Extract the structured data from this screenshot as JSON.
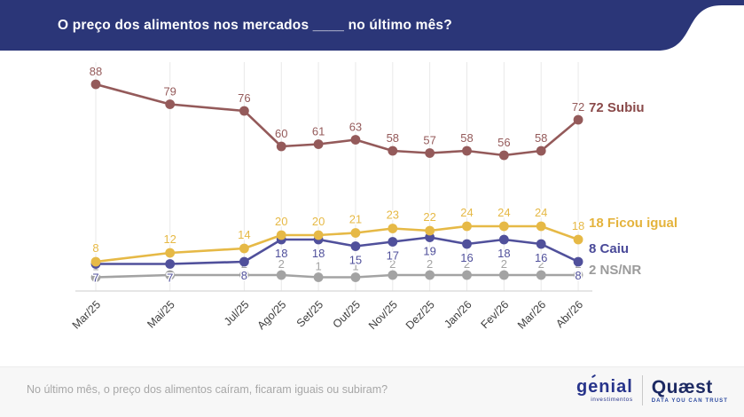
{
  "header": {
    "title": "O preço dos alimentos nos mercados ____ no último mês?",
    "bg_color": "#2b3678",
    "text_color": "#ffffff"
  },
  "chart_data": {
    "type": "line",
    "title": "O preço dos alimentos nos mercados ____ no último mês?",
    "x": [
      "Mar/25",
      "Mai/25",
      "Jul/25",
      "Ago/25",
      "Set/25",
      "Out/25",
      "Nov/25",
      "Dez/25",
      "Jan/26",
      "Fev/26",
      "Mar/26",
      "Abr/26"
    ],
    "month_offsets": [
      0,
      2,
      4,
      5,
      6,
      7,
      8,
      9,
      10,
      11,
      12,
      13
    ],
    "series": [
      {
        "name": "NS/NR",
        "end_label": "2 NS/NR",
        "color": "#a3a3a3",
        "label_color": "#9b9b9b",
        "label_pos": "above",
        "values": [
          1,
          2,
          2,
          2,
          1,
          1,
          2,
          2,
          2,
          2,
          2,
          2
        ]
      },
      {
        "name": "Caiu",
        "end_label": "8 Caiu",
        "color": "#50509b",
        "label_color": "#4a4a99",
        "label_pos": "below",
        "values": [
          7,
          7,
          8,
          18,
          18,
          15,
          17,
          19,
          16,
          18,
          16,
          8
        ]
      },
      {
        "name": "Ficou igual",
        "end_label": "18 Ficou igual",
        "color": "#e6b946",
        "label_color": "#e4b33c",
        "label_pos": "above",
        "values": [
          8,
          12,
          14,
          20,
          20,
          21,
          23,
          22,
          24,
          24,
          24,
          18
        ]
      },
      {
        "name": "Subiu",
        "end_label": "72 Subiu",
        "color": "#945a5a",
        "label_color": "#8a4a4a",
        "label_pos": "above",
        "values": [
          88,
          79,
          76,
          60,
          61,
          63,
          58,
          57,
          58,
          56,
          58,
          72
        ]
      }
    ],
    "ylim": [
      0,
      100
    ],
    "grid": "vertical",
    "grid_color": "#e9e9e9",
    "axis_line_color": "#d8d8d8",
    "axis_text_color": "#3f3f3f",
    "legend_position": "line-end"
  },
  "footer": {
    "question": "No último mês, o preço dos alimentos caíram, ficaram iguais ou subiram?",
    "genial": {
      "name": "genial",
      "subtitle": "investimentos",
      "color": "#27348b"
    },
    "quaest": {
      "name": "Quæst",
      "tagline": "DATA YOU CAN TRUST",
      "color": "#1d2a63",
      "tagline_color": "#2c4aa0"
    }
  }
}
